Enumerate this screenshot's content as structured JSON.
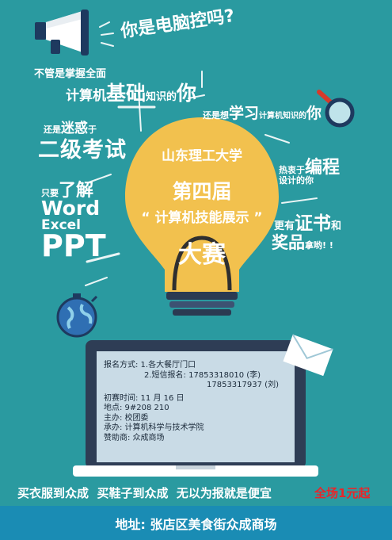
{
  "headline": {
    "q1": "你是电脑控吗?",
    "l1": "不管是掌握全面",
    "l2a": "计算机",
    "l2b": "基础",
    "l2c": "知识的",
    "l2d": "你",
    "l3a": "还是想",
    "l3b": "学习",
    "l3c": "计算机知识的",
    "l3d": "你",
    "l4a": "还是",
    "l4b": "迷惑",
    "l4c": "于",
    "l5": "二级考试",
    "l6a": "热衷于",
    "l6b": "编程",
    "l6c": "设计的你",
    "l7a": "只要",
    "l7b": "了解",
    "word": "Word",
    "excel": "Excel",
    "ppt": "PPT",
    "l8a": "更有",
    "l8b": "证书",
    "l8c": "和",
    "l9a": "奖品",
    "l9b": "拿哟! !"
  },
  "bulb": {
    "school": "山东理工大学",
    "edition": "第四届",
    "contest": "“ 计算机技能展示 ”",
    "big": "大赛"
  },
  "info": {
    "signup": "报名方式: 1.各大餐厅门口",
    "sms": "2.短信报名: 17853318010 (李)",
    "sms2": "17853317937 (刘)",
    "time": "初赛时间: 11 月 16 日",
    "place": "地点: 9#208  210",
    "host": "主办: 校团委",
    "org": "承办: 计算机科学与技术学院",
    "sponsor": "赞助商: 众成商场"
  },
  "footer": {
    "slogan": "买衣服到众成  买鞋子到众成  无以为报就是便宜",
    "promo": "全场1元起",
    "address": "地址: 张店区美食街众成商场"
  },
  "colors": {
    "background": "#2a9aa0",
    "bulb": "#f2c14e",
    "promo": "#e8262a",
    "address_bar": "#1a8cb4"
  }
}
